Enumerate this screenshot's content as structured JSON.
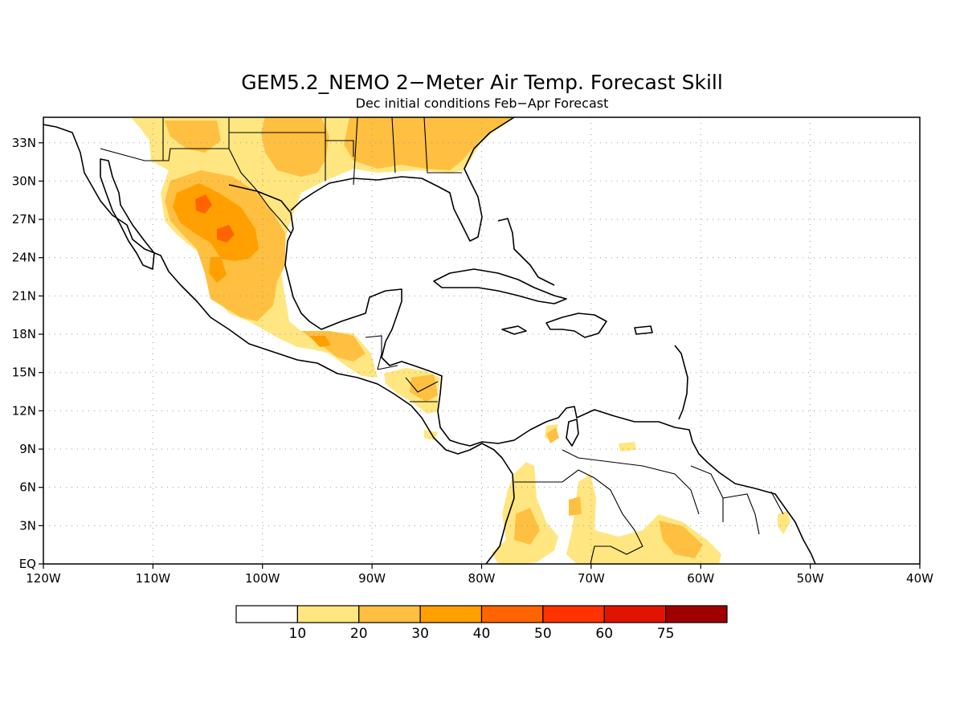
{
  "map": {
    "title": "GEM5.2_NEMO 2−Meter Air Temp. Forecast Skill",
    "subtitle": "Dec initial conditions  Feb−Apr Forecast",
    "lon_range": [
      -120,
      -40
    ],
    "lat_range": [
      0,
      35
    ],
    "lon_ticks": [
      {
        "value": -120,
        "label": "120W"
      },
      {
        "value": -110,
        "label": "110W"
      },
      {
        "value": -100,
        "label": "100W"
      },
      {
        "value": -90,
        "label": "90W"
      },
      {
        "value": -80,
        "label": "80W"
      },
      {
        "value": -70,
        "label": "70W"
      },
      {
        "value": -60,
        "label": "60W"
      },
      {
        "value": -50,
        "label": "50W"
      },
      {
        "value": -40,
        "label": "40W"
      }
    ],
    "lat_ticks": [
      {
        "value": 0,
        "label": "EQ"
      },
      {
        "value": 3,
        "label": "3N"
      },
      {
        "value": 6,
        "label": "6N"
      },
      {
        "value": 9,
        "label": "9N"
      },
      {
        "value": 12,
        "label": "12N"
      },
      {
        "value": 15,
        "label": "15N"
      },
      {
        "value": 18,
        "label": "18N"
      },
      {
        "value": 21,
        "label": "21N"
      },
      {
        "value": 24,
        "label": "24N"
      },
      {
        "value": 27,
        "label": "27N"
      },
      {
        "value": 30,
        "label": "30N"
      },
      {
        "value": 33,
        "label": "33N"
      }
    ],
    "grid": true
  },
  "colorbar": {
    "labels": [
      "10",
      "20",
      "30",
      "40",
      "50",
      "60",
      "75"
    ],
    "colors": [
      "#ffffff",
      "#ffe680",
      "#ffbf40",
      "#ffa000",
      "#ff6400",
      "#ff3200",
      "#e01400",
      "#a00000"
    ]
  }
}
